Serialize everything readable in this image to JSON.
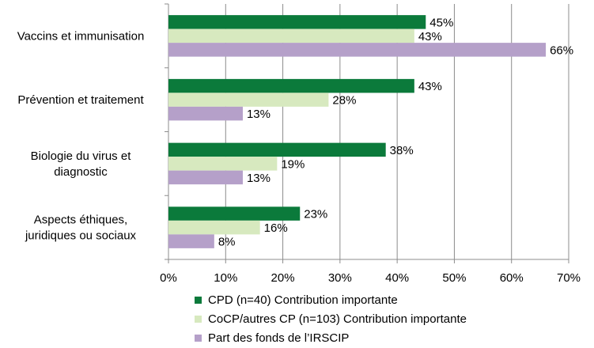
{
  "chart_data": {
    "type": "bar",
    "orientation": "horizontal",
    "categories": [
      [
        "Vaccins et immunisation"
      ],
      [
        "Prévention et traitement"
      ],
      [
        "Biologie du virus et",
        "diagnostic"
      ],
      [
        "Aspects éthiques,",
        "juridiques ou sociaux"
      ]
    ],
    "series": [
      {
        "name": "CPD (n=40) Contribution importante",
        "color": "#0b7a3b",
        "values": [
          45,
          43,
          38,
          23
        ]
      },
      {
        "name": "CoCP/autres CP (n=103) Contribution importante",
        "color": "#d7e9bf",
        "values": [
          43,
          28,
          19,
          16
        ]
      },
      {
        "name": "Part des fonds de l’IRSCIP",
        "color": "#b5a0c9",
        "values": [
          66,
          13,
          13,
          8
        ]
      }
    ],
    "data_labels": [
      [
        "45%",
        "43%",
        "38%",
        "23%"
      ],
      [
        "43%",
        "28%",
        "19%",
        "16%"
      ],
      [
        "66%",
        "13%",
        "13%",
        "8%"
      ]
    ],
    "xlim": [
      0,
      70
    ],
    "xticks": [
      0,
      10,
      20,
      30,
      40,
      50,
      60,
      70
    ],
    "xtick_labels": [
      "0%",
      "10%",
      "20%",
      "30%",
      "40%",
      "50%",
      "60%",
      "70%"
    ],
    "grid": "vertical",
    "legend_position": "bottom"
  }
}
